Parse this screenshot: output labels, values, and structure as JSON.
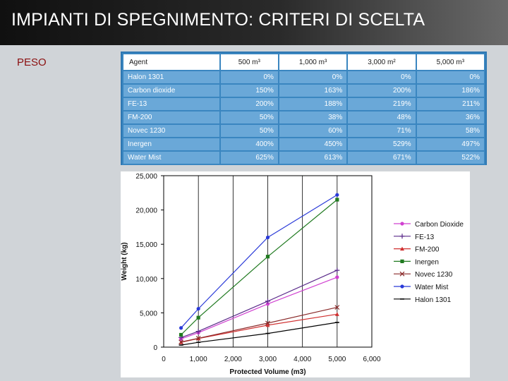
{
  "slide": {
    "title": "IMPIANTI DI SPEGNIMENTO: CRITERI DI SCELTA",
    "subtitle": "PESO"
  },
  "table": {
    "headers": [
      "Agent",
      "500 m³",
      "1,000 m³",
      "3,000 m²",
      "5,000 m³"
    ],
    "rows": [
      [
        "Halon 1301",
        "0%",
        "0%",
        "0%",
        "0%"
      ],
      [
        "Carbon dioxide",
        "150%",
        "163%",
        "200%",
        "186%"
      ],
      [
        "FE-13",
        "200%",
        "188%",
        "219%",
        "211%"
      ],
      [
        "FM-200",
        "50%",
        "38%",
        "48%",
        "36%"
      ],
      [
        "Novec 1230",
        "50%",
        "60%",
        "71%",
        "58%"
      ],
      [
        "Inergen",
        "400%",
        "450%",
        "529%",
        "497%"
      ],
      [
        "Water Mist",
        "625%",
        "613%",
        "671%",
        "522%"
      ]
    ]
  },
  "chart_data": {
    "type": "line",
    "xlabel": "Protected Volume (m3)",
    "ylabel": "Weight (kg)",
    "xlim": [
      0,
      6000
    ],
    "ylim": [
      0,
      25000
    ],
    "xticks": [
      0,
      1000,
      2000,
      3000,
      4000,
      5000,
      6000
    ],
    "xtick_labels": [
      "0",
      "1,000",
      "2,000",
      "3,000",
      "4,000",
      "5,000",
      "6,000"
    ],
    "yticks": [
      0,
      5000,
      10000,
      15000,
      20000,
      25000
    ],
    "ytick_labels": [
      "0",
      "5,000",
      "10,000",
      "15,000",
      "20,000",
      "25,000"
    ],
    "grid": "vertical",
    "legend": "right",
    "x": [
      500,
      1000,
      3000,
      5000
    ],
    "series": [
      {
        "name": "Carbon Dioxide",
        "color": "#d040d0",
        "marker": "dot",
        "values": [
          1200,
          2100,
          6300,
          10200
        ]
      },
      {
        "name": "FE-13",
        "color": "#5a2a8a",
        "marker": "plus",
        "values": [
          1400,
          2300,
          6700,
          11200
        ]
      },
      {
        "name": "FM-200",
        "color": "#d03030",
        "marker": "triangle",
        "values": [
          700,
          1250,
          3200,
          4800
        ]
      },
      {
        "name": "Inergen",
        "color": "#207a20",
        "marker": "square",
        "values": [
          1800,
          4300,
          13200,
          21500
        ]
      },
      {
        "name": "Novec 1230",
        "color": "#8a2a2a",
        "marker": "x",
        "values": [
          750,
          1300,
          3500,
          5800
        ]
      },
      {
        "name": "Water Mist",
        "color": "#2a3ad8",
        "marker": "dot",
        "values": [
          2800,
          5600,
          16000,
          22200
        ]
      },
      {
        "name": "Halon 1301",
        "color": "#000000",
        "marker": "dash",
        "values": [
          300,
          700,
          2000,
          3600
        ]
      }
    ]
  }
}
